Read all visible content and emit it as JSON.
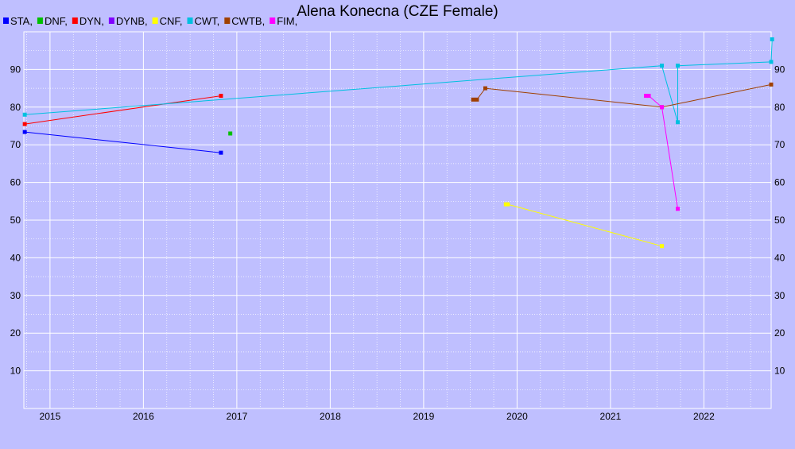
{
  "chart_data": {
    "type": "line",
    "title": "Alena Konecna (CZE Female)",
    "xlabel": "",
    "ylabel": "",
    "xlim": [
      2014.72,
      2022.72
    ],
    "ylim": [
      0,
      100
    ],
    "x_ticks": [
      2015,
      2016,
      2017,
      2018,
      2019,
      2020,
      2021,
      2022
    ],
    "y_ticks": [
      10,
      20,
      30,
      40,
      50,
      60,
      70,
      80,
      90
    ],
    "grid": true,
    "legend_position": "top-left",
    "series": [
      {
        "name": "STA",
        "label": "STA,",
        "color": "#0000ff",
        "points": [
          [
            2014.73,
            73.4
          ],
          [
            2016.83,
            67.9
          ]
        ]
      },
      {
        "name": "DNF",
        "label": "DNF,",
        "color": "#00c000",
        "points": [
          [
            2016.93,
            73.0
          ]
        ]
      },
      {
        "name": "DYN",
        "label": "DYN,",
        "color": "#ff0000",
        "points": [
          [
            2014.73,
            75.5
          ],
          [
            2016.83,
            83.0
          ]
        ]
      },
      {
        "name": "DYNB",
        "label": "DYNB,",
        "color": "#8000ff",
        "points": []
      },
      {
        "name": "CNF",
        "label": "CNF,",
        "color": "#ffff00",
        "points": [
          [
            2019.88,
            54.2
          ],
          [
            2019.9,
            54.2
          ],
          [
            2021.55,
            43.1
          ]
        ]
      },
      {
        "name": "CWT",
        "label": "CWT,",
        "color": "#00c0e0",
        "points": [
          [
            2014.73,
            78.0
          ],
          [
            2021.55,
            91.0
          ],
          [
            2021.72,
            76.0
          ],
          [
            2021.72,
            91.0
          ],
          [
            2022.72,
            92.0
          ],
          [
            2022.73,
            98.0
          ]
        ]
      },
      {
        "name": "CWTB",
        "label": "CWTB,",
        "color": "#a04000",
        "points": [
          [
            2019.53,
            82.0
          ],
          [
            2019.57,
            82.0
          ],
          [
            2019.66,
            85.0
          ],
          [
            2021.55,
            80.0
          ],
          [
            2022.72,
            86.0
          ]
        ]
      },
      {
        "name": "FIM",
        "label": "FIM,",
        "color": "#ff00ff",
        "points": [
          [
            2021.38,
            83.0
          ],
          [
            2021.41,
            83.0
          ],
          [
            2021.55,
            80.0
          ],
          [
            2021.72,
            53.0
          ]
        ]
      }
    ]
  }
}
